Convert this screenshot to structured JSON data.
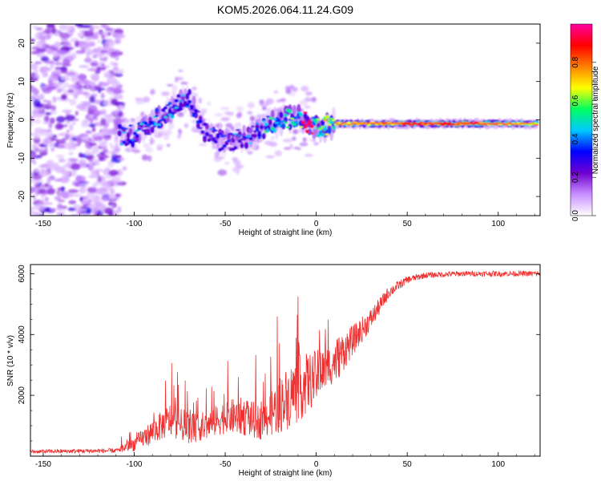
{
  "title": "KOM5.2026.064.11.24.G09",
  "chart_data": [
    {
      "type": "heatmap",
      "xlabel": "Height of straight line (km)",
      "ylabel": "Frequency (Hz)",
      "xlim": [
        -157,
        123
      ],
      "ylim": [
        -25,
        25
      ],
      "xticks": [
        -150,
        -100,
        -50,
        0,
        50,
        100
      ],
      "yticks": [
        -20,
        -10,
        0,
        10,
        20
      ],
      "colorbar": {
        "label": "Normalized spectral amplitude",
        "range": [
          0,
          1
        ],
        "ticks": [
          "0.0",
          "0.2",
          "0.4",
          "0.6",
          "0.8"
        ],
        "colors": [
          "#ffffff",
          "#c890ff",
          "#7000d0",
          "#0000ff",
          "#00c8ff",
          "#00ff60",
          "#ffff00",
          "#ff8000",
          "#ff0000",
          "#ff00a0"
        ]
      },
      "description_points": [
        {
          "x": -100,
          "freq": -4,
          "amp": 0.4
        },
        {
          "x": -85,
          "freq": 1,
          "amp": 0.45
        },
        {
          "x": -70,
          "freq": 6,
          "amp": 0.4
        },
        {
          "x": -62,
          "freq": -3,
          "amp": 0.35
        },
        {
          "x": -50,
          "freq": -6,
          "amp": 0.35
        },
        {
          "x": -35,
          "freq": -4,
          "amp": 0.4
        },
        {
          "x": -25,
          "freq": -1,
          "amp": 0.5
        },
        {
          "x": -10,
          "freq": 1,
          "amp": 0.6
        },
        {
          "x": 0,
          "freq": -2,
          "amp": 0.6
        },
        {
          "x": 10,
          "freq": -1,
          "amp": 0.8
        },
        {
          "x": 30,
          "freq": -1,
          "amp": 0.85
        },
        {
          "x": 60,
          "freq": -1,
          "amp": 0.9
        },
        {
          "x": 90,
          "freq": -1,
          "amp": 0.9
        },
        {
          "x": 120,
          "freq": -1,
          "amp": 0.8
        }
      ]
    },
    {
      "type": "line",
      "xlabel": "Height of straight line (km)",
      "ylabel": "SNR (10 * v/v)",
      "xlim": [
        -157,
        123
      ],
      "ylim": [
        0,
        6300
      ],
      "xticks": [
        -150,
        -100,
        -50,
        0,
        50,
        100
      ],
      "yticks": [
        2000,
        4000,
        6000
      ],
      "color": "#ee3030",
      "envelope": {
        "x": [
          -157,
          -110,
          -100,
          -90,
          -80,
          -70,
          -60,
          -50,
          -40,
          -30,
          -20,
          -10,
          0,
          10,
          20,
          30,
          40,
          50,
          60,
          80,
          100,
          123
        ],
        "mean": [
          150,
          180,
          400,
          800,
          1200,
          900,
          1000,
          1300,
          1300,
          1100,
          1700,
          2200,
          2600,
          3100,
          3800,
          4500,
          5400,
          5800,
          5950,
          6000,
          6000,
          6000
        ],
        "spread": [
          60,
          80,
          300,
          500,
          700,
          600,
          600,
          700,
          800,
          700,
          1200,
          1400,
          1100,
          800,
          500,
          350,
          200,
          120,
          100,
          90,
          90,
          90
        ]
      }
    }
  ]
}
